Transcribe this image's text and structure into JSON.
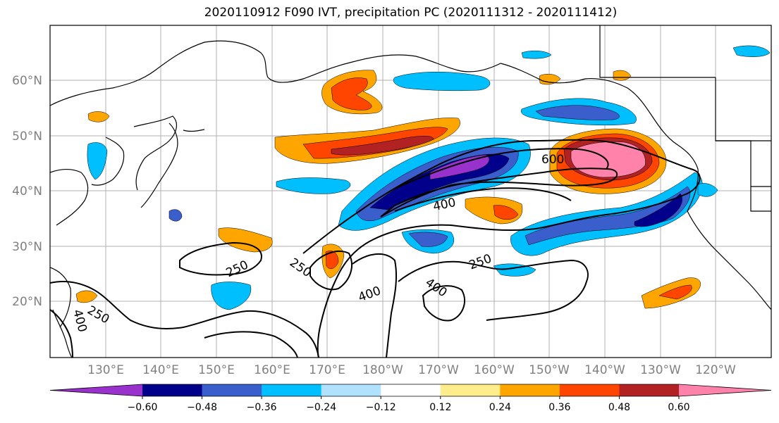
{
  "title": "2020110912 F090 IVT, precipitation PC (2020111312 - 2020111412)",
  "lat_labels": [
    "60°N",
    "50°N",
    "40°N",
    "30°N",
    "20°N"
  ],
  "lon_labels": [
    "130°E",
    "140°E",
    "150°E",
    "160°E",
    "170°E",
    "180°W",
    "170°W",
    "160°W",
    "150°W",
    "140°W",
    "130°W",
    "120°W"
  ],
  "contour_labels": [
    "600",
    "400",
    "250",
    "250",
    "250",
    "400",
    "400",
    "250",
    "400"
  ],
  "colorbar": {
    "ticks": [
      "−0.60",
      "−0.48",
      "−0.36",
      "−0.24",
      "−0.12",
      "0.12",
      "0.24",
      "0.36",
      "0.48",
      "0.60"
    ],
    "colors": [
      "#9932cc",
      "#00008b",
      "#3a5fcd",
      "#00bfff",
      "#b0e2ff",
      "#ffffff",
      "#ffec8b",
      "#ffa500",
      "#ff4500",
      "#b22222",
      "#ff82ab"
    ]
  }
}
